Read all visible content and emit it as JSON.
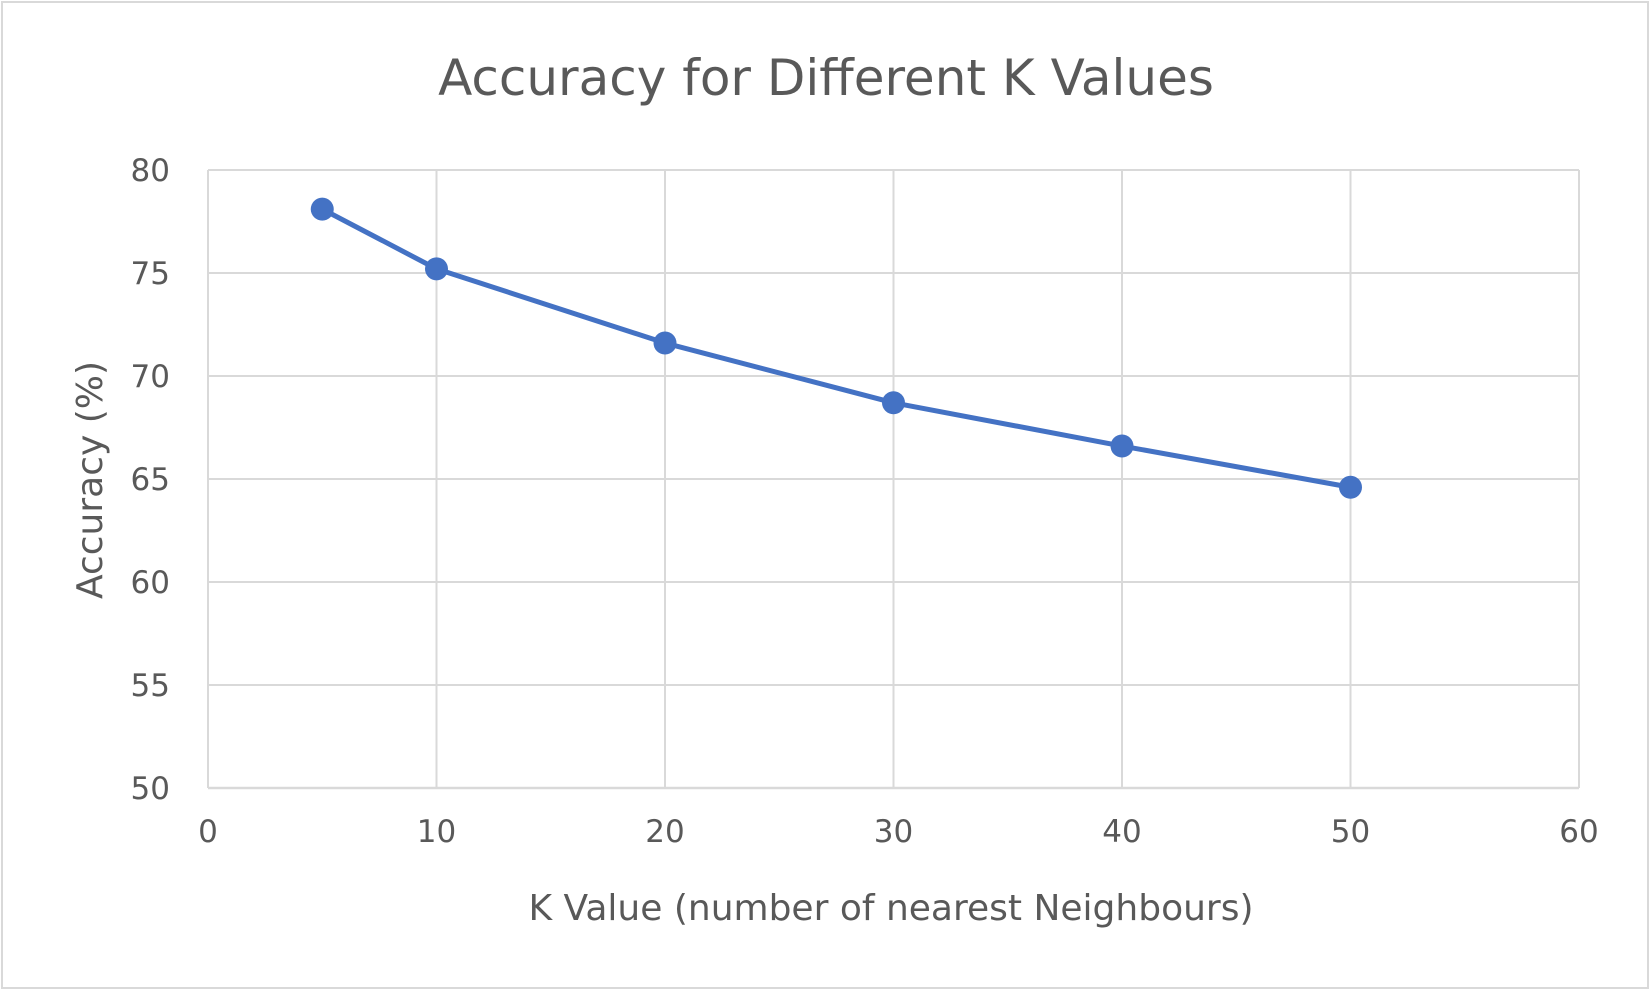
{
  "chart_data": {
    "type": "line",
    "title": "Accuracy for Different K Values",
    "xlabel": "K Value (number of nearest Neighbours)",
    "ylabel": "Accuracy (%)",
    "xlim": [
      0,
      60
    ],
    "ylim": [
      50,
      80
    ],
    "xticks": [
      0,
      10,
      20,
      30,
      40,
      50,
      60
    ],
    "yticks": [
      50,
      55,
      60,
      65,
      70,
      75,
      80
    ],
    "grid": true,
    "legend": "none",
    "series": [
      {
        "color": "#4472c4",
        "x": [
          5,
          10,
          20,
          30,
          40,
          50
        ],
        "y": [
          78.1,
          75.2,
          71.6,
          68.7,
          66.6,
          64.6
        ]
      }
    ]
  }
}
